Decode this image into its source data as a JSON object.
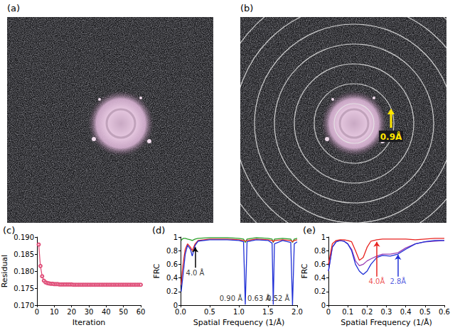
{
  "images": [
    {
      "label": "(a)"
    },
    {
      "label": "(b)",
      "annotation": "0.9Å"
    }
  ],
  "chart_data": [
    {
      "type": "line",
      "label": "(c)",
      "x_label": "Iteration",
      "y_label": "Residual",
      "grid": false,
      "xlim": [
        0,
        60
      ],
      "xticks": [
        0,
        10,
        20,
        30,
        40,
        50,
        60
      ],
      "ylim": [
        0.17,
        0.19
      ],
      "yticks": [
        {
          "value": 0.17,
          "label": "0.170"
        },
        {
          "value": 0.175,
          "label": "0.175"
        },
        {
          "value": 0.18,
          "label": "0.180"
        },
        {
          "value": 0.185,
          "label": "0.185"
        },
        {
          "value": 0.19,
          "label": "0.190"
        }
      ],
      "x": [
        1,
        2,
        3,
        4,
        5,
        6,
        7,
        8,
        9,
        10,
        11,
        12,
        13,
        14,
        15,
        16,
        17,
        18,
        19,
        20,
        21,
        22,
        23,
        24,
        25,
        26,
        27,
        28,
        29,
        30,
        31,
        32,
        33,
        34,
        35,
        36,
        37,
        38,
        39,
        40,
        41,
        42,
        43,
        44,
        45,
        46,
        47,
        48,
        49,
        50,
        51,
        52,
        53,
        54,
        55,
        56,
        57,
        58,
        59,
        60
      ],
      "series": [
        {
          "color": "#e0507a",
          "marker": "circle",
          "line_style": "solid",
          "values": [
            0.1878,
            0.1815,
            0.1785,
            0.1772,
            0.1767,
            0.1765,
            0.1764,
            0.1763,
            0.1763,
            0.1762,
            0.1762,
            0.1762,
            0.1761,
            0.1761,
            0.1761,
            0.1761,
            0.1761,
            0.1761,
            0.1761,
            0.1761,
            0.176,
            0.176,
            0.176,
            0.176,
            0.176,
            0.176,
            0.176,
            0.176,
            0.176,
            0.176,
            0.176,
            0.176,
            0.176,
            0.176,
            0.176,
            0.176,
            0.176,
            0.176,
            0.176,
            0.176,
            0.176,
            0.176,
            0.176,
            0.176,
            0.176,
            0.176,
            0.176,
            0.176,
            0.176,
            0.176,
            0.176,
            0.176,
            0.176,
            0.176,
            0.176,
            0.176,
            0.176,
            0.176,
            0.176,
            0.176
          ]
        }
      ],
      "annotations": []
    },
    {
      "type": "line",
      "label": "(d)",
      "x_label": "Spatial Frequency (1/Å)",
      "y_label": "FRC",
      "grid": false,
      "xlim": [
        0,
        2
      ],
      "xticks": [
        {
          "value": 0,
          "label": "0.0"
        },
        0.5,
        {
          "value": 1,
          "label": "1.0"
        },
        1.5,
        {
          "value": 2,
          "label": "2.0"
        }
      ],
      "ylim": [
        0,
        1
      ],
      "yticks": [
        0,
        0.2,
        0.4,
        0.6,
        0.8,
        1
      ],
      "x": [
        0.01,
        0.03,
        0.05,
        0.08,
        0.12,
        0.17,
        0.2,
        0.25,
        0.3,
        0.5,
        0.8,
        1.0,
        1.08,
        1.11,
        1.14,
        1.3,
        1.5,
        1.57,
        1.59,
        1.61,
        1.75,
        1.89,
        1.92,
        1.95,
        2.0
      ],
      "series": [
        {
          "color": "#2ca02c",
          "line_style": "solid",
          "values": [
            0.95,
            0.97,
            0.98,
            0.98,
            0.97,
            0.96,
            0.95,
            0.97,
            0.98,
            0.99,
            0.99,
            0.98,
            0.97,
            0.92,
            0.97,
            0.99,
            0.98,
            0.97,
            0.92,
            0.97,
            0.98,
            0.97,
            0.92,
            0.97,
            0.98
          ]
        },
        {
          "color": "#e8231f",
          "line_style": "solid",
          "values": [
            0.3,
            0.5,
            0.65,
            0.82,
            0.9,
            0.85,
            0.8,
            0.9,
            0.95,
            0.97,
            0.97,
            0.96,
            0.95,
            0.94,
            0.95,
            0.97,
            0.96,
            0.95,
            0.93,
            0.95,
            0.96,
            0.95,
            0.93,
            0.95,
            0.96
          ]
        },
        {
          "color": "#1f2fd6",
          "line_style": "solid",
          "values": [
            0.2,
            0.35,
            0.5,
            0.75,
            0.88,
            0.82,
            0.72,
            0.88,
            0.94,
            0.96,
            0.96,
            0.95,
            0.93,
            0.01,
            0.93,
            0.96,
            0.95,
            0.91,
            0.01,
            0.9,
            0.95,
            0.92,
            0.0,
            0.9,
            0.93
          ]
        }
      ],
      "annotations": [
        {
          "text": "4.0 Å",
          "x": 0.25,
          "y": 0.55,
          "arrow_y": 0.85,
          "color": "#000000"
        },
        {
          "text": "0.90 Å",
          "x": 1.11,
          "y": 0.1,
          "color": "#000000"
        },
        {
          "text": "0.63 Å",
          "x": 1.59,
          "y": 0.1,
          "color": "#000000"
        },
        {
          "text": "0.52 Å",
          "x": 1.92,
          "y": 0.1,
          "color": "#000000"
        }
      ]
    },
    {
      "type": "line",
      "label": "(e)",
      "x_label": "Spatial Frequency (1/Å)",
      "y_label": "FRC",
      "grid": false,
      "xlim": [
        0,
        0.6
      ],
      "xticks": [
        0,
        0.1,
        0.2,
        0.3,
        0.4,
        0.5,
        0.6
      ],
      "ylim": [
        0,
        1
      ],
      "yticks": [
        0,
        0.2,
        0.4,
        0.6,
        0.8,
        1
      ],
      "x": [
        0,
        0.02,
        0.04,
        0.06,
        0.08,
        0.1,
        0.12,
        0.14,
        0.16,
        0.18,
        0.2,
        0.22,
        0.25,
        0.28,
        0.32,
        0.36,
        0.4,
        0.45,
        0.5,
        0.55,
        0.6
      ],
      "series": [
        {
          "color": "#9b3fb5",
          "line_style": "solid",
          "values": [
            0.5,
            0.85,
            0.93,
            0.95,
            0.94,
            0.9,
            0.82,
            0.65,
            0.58,
            0.6,
            0.65,
            0.68,
            0.72,
            0.75,
            0.75,
            0.77,
            0.84,
            0.9,
            0.93,
            0.94,
            0.95
          ]
        },
        {
          "color": "#1f2fd6",
          "line_style": "solid",
          "values": [
            0.5,
            0.85,
            0.93,
            0.95,
            0.94,
            0.9,
            0.8,
            0.6,
            0.5,
            0.45,
            0.5,
            0.6,
            0.7,
            0.73,
            0.72,
            0.75,
            0.82,
            0.9,
            0.93,
            0.95,
            0.95
          ]
        },
        {
          "color": "#e8231f",
          "line_style": "solid",
          "values": [
            0.6,
            0.9,
            0.95,
            0.96,
            0.96,
            0.95,
            0.93,
            0.8,
            0.66,
            0.7,
            0.85,
            0.94,
            0.96,
            0.97,
            0.97,
            0.97,
            0.97,
            0.96,
            0.97,
            0.98,
            0.98
          ]
        }
      ],
      "annotations": [
        {
          "text": "4.0Å",
          "x": 0.25,
          "y": 0.42,
          "arrow_y": 0.93,
          "color": "#e8231f"
        },
        {
          "text": "2.8Å",
          "x": 0.36,
          "y": 0.42,
          "arrow_y": 0.74,
          "color": "#1f2fd6"
        }
      ]
    }
  ]
}
